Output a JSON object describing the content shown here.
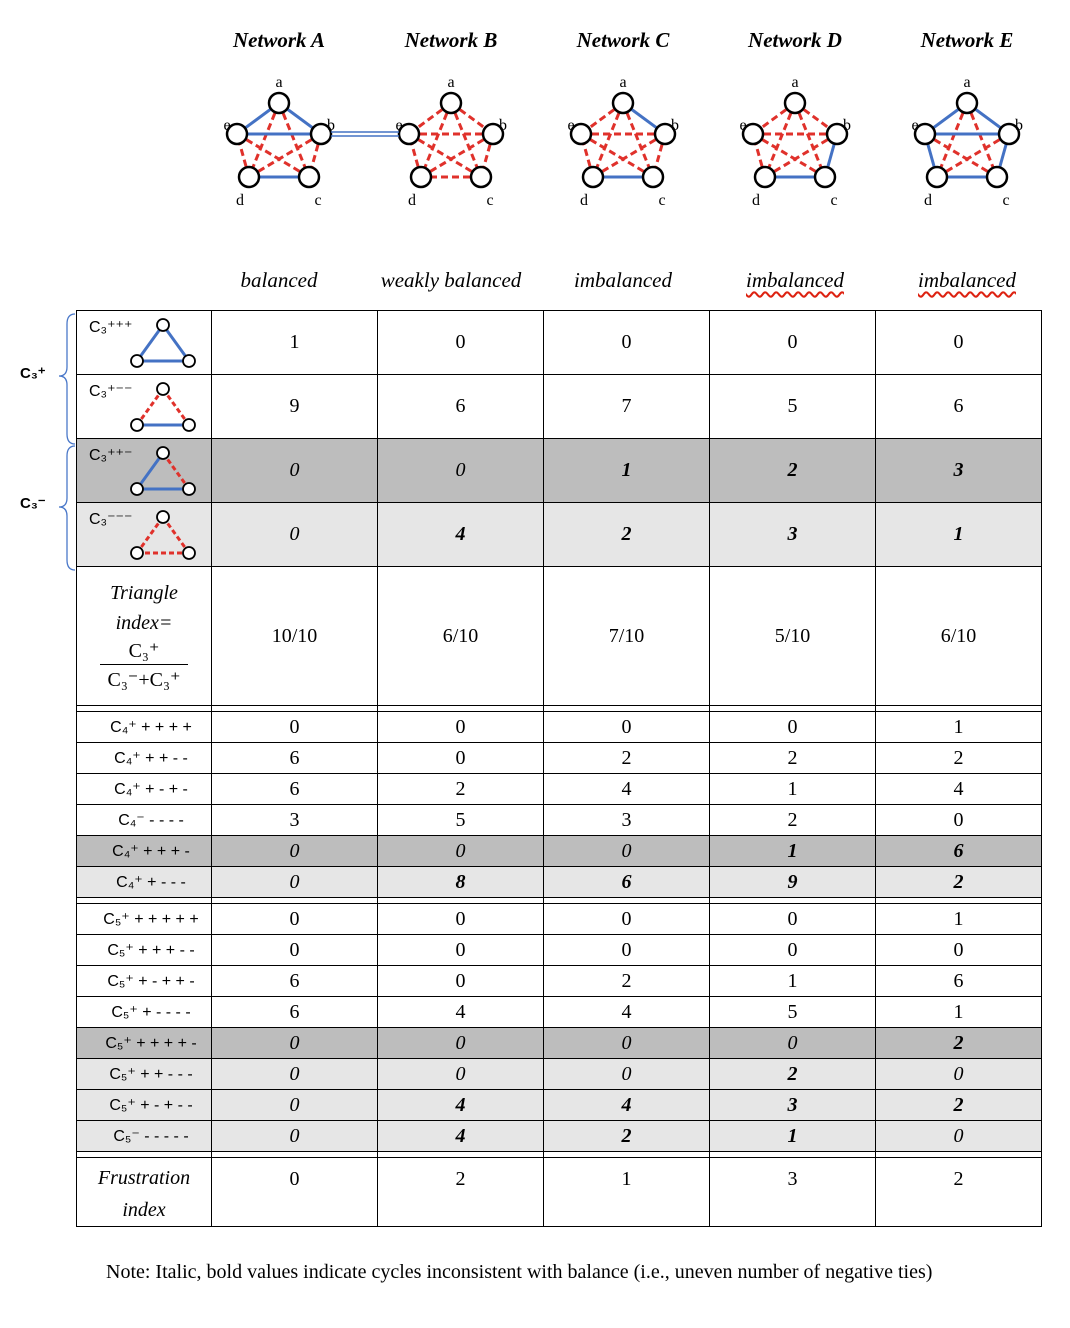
{
  "networks": [
    {
      "title": "Network A",
      "status": "balanced",
      "wavy": false
    },
    {
      "title": "Network B",
      "status": "weakly balanced",
      "wavy": false
    },
    {
      "title": "Network C",
      "status": "imbalanced",
      "wavy": false
    },
    {
      "title": "Network D",
      "status": "imbalanced",
      "wavy": true
    },
    {
      "title": "Network E",
      "status": "imbalanced",
      "wavy": true
    }
  ],
  "node_labels": [
    "a",
    "b",
    "c",
    "d",
    "e"
  ],
  "colors": {
    "positive": "#4472c4",
    "negative": "#e0312b",
    "dark_row": "#bdbdbd",
    "light_row": "#e6e6e6"
  },
  "side_labels": {
    "c3_plus": "C₃⁺",
    "c3_minus": "C₃⁻"
  },
  "triangle_rows": [
    {
      "label": "C₃⁺⁺⁺",
      "values": [
        "1",
        "0",
        "0",
        "0",
        "0"
      ],
      "style": "plain",
      "bold": [
        false,
        false,
        false,
        false,
        false
      ],
      "icon": "all-positive"
    },
    {
      "label": "C₃⁺⁻⁻",
      "values": [
        "9",
        "6",
        "7",
        "5",
        "6"
      ],
      "style": "plain",
      "bold": [
        false,
        false,
        false,
        false,
        false
      ],
      "icon": "one-positive"
    },
    {
      "label": "C₃⁺⁺⁻",
      "values": [
        "0",
        "0",
        "1",
        "2",
        "3"
      ],
      "style": "dark",
      "bold": [
        false,
        false,
        true,
        true,
        true
      ],
      "icon": "two-positive"
    },
    {
      "label": "C₃⁻⁻⁻",
      "values": [
        "0",
        "4",
        "2",
        "3",
        "1"
      ],
      "style": "light",
      "bold": [
        false,
        true,
        true,
        true,
        true
      ],
      "icon": "all-negative"
    }
  ],
  "triangle_index": {
    "label_lines": [
      "Triangle",
      "index="
    ],
    "numerator": "C₃⁺",
    "denominator": "C₃⁻+C₃⁺",
    "values": [
      "10/10",
      "6/10",
      "7/10",
      "5/10",
      "6/10"
    ]
  },
  "c4_rows": [
    {
      "label": "C₄⁺ + + + +",
      "values": [
        "0",
        "0",
        "0",
        "0",
        "1"
      ],
      "style": "plain",
      "bold": [
        false,
        false,
        false,
        false,
        false
      ]
    },
    {
      "label": "C₄⁺ + + - -",
      "values": [
        "6",
        "0",
        "2",
        "2",
        "2"
      ],
      "style": "plain",
      "bold": [
        false,
        false,
        false,
        false,
        false
      ]
    },
    {
      "label": "C₄⁺ + - + -",
      "values": [
        "6",
        "2",
        "4",
        "1",
        "4"
      ],
      "style": "plain",
      "bold": [
        false,
        false,
        false,
        false,
        false
      ]
    },
    {
      "label": "C₄⁻ - - - -",
      "values": [
        "3",
        "5",
        "3",
        "2",
        "0"
      ],
      "style": "plain",
      "bold": [
        false,
        false,
        false,
        false,
        false
      ]
    },
    {
      "label": "C₄⁺ + + + -",
      "values": [
        "0",
        "0",
        "0",
        "1",
        "6"
      ],
      "style": "dark",
      "bold": [
        false,
        false,
        false,
        true,
        true
      ]
    },
    {
      "label": "C₄⁺ + - - -",
      "values": [
        "0",
        "8",
        "6",
        "9",
        "2"
      ],
      "style": "light",
      "bold": [
        false,
        true,
        true,
        true,
        true
      ]
    }
  ],
  "c5_rows": [
    {
      "label": "C₅⁺ + + + + +",
      "values": [
        "0",
        "0",
        "0",
        "0",
        "1"
      ],
      "style": "plain",
      "bold": [
        false,
        false,
        false,
        false,
        false
      ]
    },
    {
      "label": "C₅⁺ + + + - -",
      "values": [
        "0",
        "0",
        "0",
        "0",
        "0"
      ],
      "style": "plain",
      "bold": [
        false,
        false,
        false,
        false,
        false
      ]
    },
    {
      "label": "C₅⁺ + - + + -",
      "values": [
        "6",
        "0",
        "2",
        "1",
        "6"
      ],
      "style": "plain",
      "bold": [
        false,
        false,
        false,
        false,
        false
      ]
    },
    {
      "label": "C₅⁺ + - - - -",
      "values": [
        "6",
        "4",
        "4",
        "5",
        "1"
      ],
      "style": "plain",
      "bold": [
        false,
        false,
        false,
        false,
        false
      ]
    },
    {
      "label": "C₅⁺ + + + + -",
      "values": [
        "0",
        "0",
        "0",
        "0",
        "2"
      ],
      "style": "dark",
      "bold": [
        false,
        false,
        false,
        false,
        true
      ]
    },
    {
      "label": "C₅⁺ + + - - -",
      "values": [
        "0",
        "0",
        "0",
        "2",
        "0"
      ],
      "style": "light",
      "bold": [
        false,
        false,
        false,
        true,
        false
      ]
    },
    {
      "label": "C₅⁺ + - + - -",
      "values": [
        "0",
        "4",
        "4",
        "3",
        "2"
      ],
      "style": "light",
      "bold": [
        false,
        true,
        true,
        true,
        true
      ]
    },
    {
      "label": "C₅⁻ - - - - -",
      "values": [
        "0",
        "4",
        "2",
        "1",
        "0"
      ],
      "style": "light",
      "bold": [
        false,
        true,
        true,
        true,
        false
      ]
    }
  ],
  "frustration": {
    "label": "Frustration index",
    "values": [
      "0",
      "2",
      "1",
      "3",
      "2"
    ]
  },
  "note": "Note: Italic, bold values indicate cycles inconsistent with balance (i.e., uneven number of negative ties)",
  "graphs": [
    {
      "positive": [
        [
          "a",
          "b"
        ],
        [
          "a",
          "e"
        ],
        [
          "b",
          "e"
        ],
        [
          "c",
          "d"
        ]
      ],
      "negative": [
        [
          "a",
          "c"
        ],
        [
          "a",
          "d"
        ],
        [
          "b",
          "c"
        ],
        [
          "b",
          "d"
        ],
        [
          "c",
          "e"
        ],
        [
          "d",
          "e"
        ]
      ]
    },
    {
      "positive": [],
      "negative": [
        [
          "a",
          "b"
        ],
        [
          "a",
          "c"
        ],
        [
          "a",
          "d"
        ],
        [
          "a",
          "e"
        ],
        [
          "b",
          "c"
        ],
        [
          "b",
          "d"
        ],
        [
          "b",
          "e"
        ],
        [
          "c",
          "d"
        ],
        [
          "c",
          "e"
        ],
        [
          "d",
          "e"
        ]
      ]
    },
    {
      "positive": [
        [
          "a",
          "b"
        ],
        [
          "c",
          "d"
        ]
      ],
      "negative": [
        [
          "a",
          "c"
        ],
        [
          "a",
          "d"
        ],
        [
          "a",
          "e"
        ],
        [
          "b",
          "c"
        ],
        [
          "b",
          "d"
        ],
        [
          "b",
          "e"
        ],
        [
          "c",
          "e"
        ],
        [
          "d",
          "e"
        ]
      ]
    },
    {
      "positive": [
        [
          "b",
          "c"
        ],
        [
          "c",
          "d"
        ]
      ],
      "negative": [
        [
          "a",
          "b"
        ],
        [
          "a",
          "c"
        ],
        [
          "a",
          "d"
        ],
        [
          "a",
          "e"
        ],
        [
          "b",
          "d"
        ],
        [
          "b",
          "e"
        ],
        [
          "c",
          "e"
        ],
        [
          "d",
          "e"
        ]
      ]
    },
    {
      "positive": [
        [
          "a",
          "b"
        ],
        [
          "a",
          "e"
        ],
        [
          "b",
          "c"
        ],
        [
          "c",
          "d"
        ],
        [
          "d",
          "e"
        ],
        [
          "b",
          "e"
        ]
      ],
      "negative": [
        [
          "a",
          "c"
        ],
        [
          "a",
          "d"
        ],
        [
          "b",
          "d"
        ],
        [
          "c",
          "e"
        ]
      ]
    }
  ]
}
